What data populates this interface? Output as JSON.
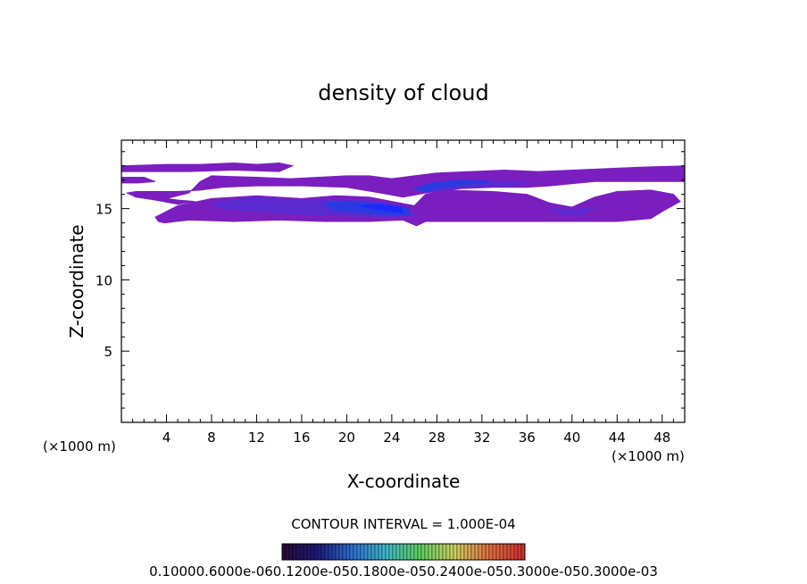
{
  "chart_data": {
    "type": "heatmap",
    "title": "density of cloud",
    "xlabel": "X-coordinate",
    "ylabel": "Z-coordinate",
    "x_unit_left": "(×1000 m)",
    "x_unit_right": "(×1000 m)",
    "xlim": [
      0,
      50
    ],
    "ylim": [
      0,
      19.8
    ],
    "x_ticks": [
      4,
      8,
      12,
      16,
      20,
      24,
      28,
      32,
      36,
      40,
      44,
      48
    ],
    "x_tick_labels": [
      "4",
      "8",
      "12",
      "16",
      "20",
      "24",
      "28",
      "32",
      "36",
      "40",
      "44",
      "48"
    ],
    "y_ticks": [
      5,
      10,
      15
    ],
    "y_tick_labels": [
      "5",
      "10",
      "15"
    ],
    "contour_interval_text": "CONTOUR INTERVAL = 1.000E-04",
    "colorbar": {
      "labels": [
        "0.1000",
        "0.6000e-06",
        "0.1200e-05",
        "0.1800e-05",
        "0.2400e-05",
        "0.3000e-05",
        "0.3000e-03"
      ],
      "colors": [
        "#2a0a3a",
        "#1a1a7a",
        "#2f6fd0",
        "#3fb8c8",
        "#5fd05f",
        "#d0d060",
        "#e07040",
        "#d03030"
      ]
    },
    "fill_colors": {
      "base": "#7a1ec0",
      "mid": "#5a2ad0",
      "dense": "#2a3ae0",
      "core": "#1a2aff"
    },
    "regions": [
      {
        "level": "base",
        "polygon": [
          [
            0,
            18
          ],
          [
            4,
            18.1
          ],
          [
            7,
            18.1
          ],
          [
            10,
            18.2
          ],
          [
            12,
            18.1
          ],
          [
            14,
            18.2
          ],
          [
            15.2,
            18
          ],
          [
            14,
            17.6
          ],
          [
            10,
            17.7
          ],
          [
            6,
            17.6
          ],
          [
            3,
            17.6
          ],
          [
            0,
            17.6
          ]
        ]
      },
      {
        "level": "base",
        "polygon": [
          [
            0,
            17.2
          ],
          [
            2,
            17.2
          ],
          [
            3,
            16.9
          ],
          [
            1.5,
            16.8
          ],
          [
            0,
            16.8
          ]
        ]
      },
      {
        "level": "base",
        "polygon": [
          [
            8,
            17.3
          ],
          [
            12,
            17.2
          ],
          [
            15,
            17.1
          ],
          [
            17.5,
            17.2
          ],
          [
            20,
            17.3
          ],
          [
            22,
            17.3
          ],
          [
            24,
            17.1
          ],
          [
            26,
            17.3
          ],
          [
            28,
            17.5
          ],
          [
            31,
            17.6
          ],
          [
            34,
            17.7
          ],
          [
            37,
            17.6
          ],
          [
            40,
            17.7
          ],
          [
            43,
            17.8
          ],
          [
            46,
            17.9
          ],
          [
            50,
            18
          ],
          [
            50,
            16.9
          ],
          [
            46,
            16.9
          ],
          [
            42,
            16.9
          ],
          [
            38,
            16.6
          ],
          [
            36,
            16.5
          ],
          [
            33,
            16.5
          ],
          [
            30,
            16.4
          ],
          [
            27,
            16.1
          ],
          [
            25,
            15.8
          ],
          [
            23,
            16.1
          ],
          [
            20,
            16.5
          ],
          [
            16,
            16.6
          ],
          [
            12,
            16.6
          ],
          [
            9,
            16.5
          ],
          [
            7,
            16.3
          ],
          [
            5,
            16.2
          ],
          [
            3,
            16.2
          ],
          [
            1.3,
            16.2
          ],
          [
            0.5,
            16.1
          ],
          [
            1.3,
            15.8
          ],
          [
            3,
            15.6
          ],
          [
            5,
            15.3
          ],
          [
            6.5,
            15.5
          ],
          [
            5,
            15.6
          ],
          [
            4,
            15.7
          ],
          [
            6,
            16.1
          ],
          [
            7,
            16.9
          ]
        ]
      },
      {
        "level": "base",
        "polygon": [
          [
            3,
            14.4
          ],
          [
            5,
            15.2
          ],
          [
            8,
            15.7
          ],
          [
            12,
            15.9
          ],
          [
            16,
            15.7
          ],
          [
            19,
            15.9
          ],
          [
            22,
            15.8
          ],
          [
            26,
            15.2
          ],
          [
            27,
            16
          ],
          [
            29,
            16.3
          ],
          [
            33,
            16.2
          ],
          [
            36,
            16
          ],
          [
            38,
            15.4
          ],
          [
            40,
            15.1
          ],
          [
            42,
            15.8
          ],
          [
            44,
            16.2
          ],
          [
            47,
            16.3
          ],
          [
            49,
            16
          ],
          [
            49.6,
            15.5
          ],
          [
            48,
            14.8
          ],
          [
            47,
            14.3
          ],
          [
            44,
            14.1
          ],
          [
            40,
            14.1
          ],
          [
            36,
            14.1
          ],
          [
            30,
            14.1
          ],
          [
            27,
            14.1
          ],
          [
            26.2,
            13.8
          ],
          [
            25,
            14.2
          ],
          [
            22,
            14.1
          ],
          [
            18,
            14.1
          ],
          [
            14,
            14.2
          ],
          [
            10,
            14.1
          ],
          [
            6,
            14.2
          ],
          [
            3.8,
            14
          ],
          [
            3.3,
            14.1
          ]
        ]
      },
      {
        "level": "mid",
        "polygon": [
          [
            8,
            15.4
          ],
          [
            12,
            15.8
          ],
          [
            15,
            15.6
          ],
          [
            19,
            15.6
          ],
          [
            22,
            15.6
          ],
          [
            25,
            15.2
          ],
          [
            26,
            14.6
          ],
          [
            24,
            14.4
          ],
          [
            20,
            14.5
          ],
          [
            16,
            14.6
          ],
          [
            12,
            14.8
          ],
          [
            9,
            15
          ]
        ]
      },
      {
        "level": "mid",
        "polygon": [
          [
            26,
            16.3
          ],
          [
            28,
            16.8
          ],
          [
            31,
            17
          ],
          [
            34,
            16.9
          ],
          [
            36,
            16.8
          ],
          [
            35,
            16.6
          ],
          [
            31,
            16.5
          ],
          [
            28,
            16.2
          ]
        ]
      },
      {
        "level": "dense",
        "polygon": [
          [
            18,
            15.4
          ],
          [
            20,
            15.5
          ],
          [
            22,
            15.4
          ],
          [
            24,
            15.2
          ],
          [
            25.5,
            15
          ],
          [
            25.6,
            14.5
          ],
          [
            23,
            14.6
          ],
          [
            20,
            14.8
          ],
          [
            18.5,
            15
          ]
        ]
      },
      {
        "level": "dense",
        "polygon": [
          [
            26,
            16.4
          ],
          [
            27.5,
            16.8
          ],
          [
            30,
            17
          ],
          [
            33,
            16.9
          ],
          [
            31,
            16.7
          ],
          [
            28.5,
            16.5
          ],
          [
            27,
            16.2
          ]
        ]
      },
      {
        "level": "core",
        "polygon": [
          [
            21,
            15.2
          ],
          [
            23,
            15.3
          ],
          [
            24.8,
            15.1
          ],
          [
            25,
            14.7
          ],
          [
            23,
            14.9
          ]
        ]
      },
      {
        "level": "mid",
        "polygon": [
          [
            38,
            15
          ],
          [
            40,
            14.9
          ],
          [
            42,
            15.1
          ],
          [
            41,
            14.6
          ],
          [
            39,
            14.6
          ]
        ]
      }
    ]
  }
}
